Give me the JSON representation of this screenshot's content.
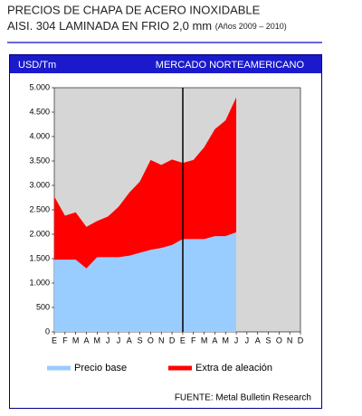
{
  "chart_data": {
    "type": "area",
    "title": "PRECIOS DE CHAPA DE ACERO INOXIDABLE",
    "subtitle": "AISI. 304 LAMINADA EN FRIO 2,0 mm",
    "subtitle_note": "(Años 2009 – 2010)",
    "y_label": "USD/Tm",
    "header": "MERCADO NORTEAMERICANO",
    "source": "FUENTE:  Metal Bulletin Research",
    "stacked": true,
    "categories": [
      "E",
      "F",
      "M",
      "A",
      "M",
      "J",
      "J",
      "A",
      "S",
      "O",
      "N",
      "D",
      "E",
      "F",
      "M",
      "A",
      "M",
      "J",
      "J",
      "A",
      "S",
      "O",
      "N",
      "D"
    ],
    "series": [
      {
        "name": "Precio base",
        "color": "#99ccff",
        "values": [
          1480,
          1480,
          1480,
          1300,
          1530,
          1530,
          1530,
          1560,
          1620,
          1680,
          1720,
          1780,
          1900,
          1900,
          1900,
          1960,
          1960,
          2040,
          null,
          null,
          null,
          null,
          null,
          null
        ]
      },
      {
        "name": "Extra de aleación",
        "color": "#ff0000",
        "values": [
          1290,
          900,
          970,
          850,
          740,
          830,
          1030,
          1290,
          1460,
          1840,
          1700,
          1750,
          1560,
          1620,
          1880,
          2190,
          2370,
          2760,
          null,
          null,
          null,
          null,
          null,
          null
        ]
      }
    ],
    "ylim": [
      0,
      5000
    ],
    "yticks": [
      0,
      {
        "value": 500,
        "label": "500"
      },
      {
        "value": 1000,
        "label": "1.000"
      },
      {
        "value": 1500,
        "label": "1.500"
      },
      {
        "value": 2000,
        "label": "2.000"
      },
      {
        "value": 2500,
        "label": "2.500"
      },
      {
        "value": 3000,
        "label": "3.000"
      },
      {
        "value": 3500,
        "label": "3.500"
      },
      {
        "value": 4000,
        "label": "4.000"
      },
      {
        "value": 4500,
        "label": "4.500"
      },
      {
        "value": 5000,
        "label": "5.000"
      }
    ]
  }
}
